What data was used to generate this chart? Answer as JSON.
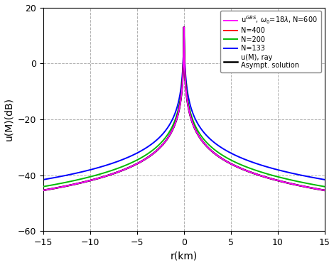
{
  "xlim": [
    -15,
    15
  ],
  "ylim": [
    -60,
    20
  ],
  "xlabel": "r(km)",
  "ylabel": "u(M)(dB)",
  "xticks": [
    -15,
    -10,
    -5,
    0,
    5,
    10,
    15
  ],
  "yticks": [
    -60,
    -40,
    -20,
    0,
    20
  ],
  "peak_value": 13.0,
  "color_ray": "#000000",
  "color_n600": "#ff00ff",
  "color_n400": "#ff0000",
  "color_n200": "#00bb00",
  "color_n133": "#0000ff",
  "lw_ray": 1.8,
  "lw_n600": 1.4,
  "lw_n400": 1.4,
  "lw_n200": 1.4,
  "lw_n133": 1.4,
  "legend_n600": "u$^{GBS}$, $\\omega_0$=18$\\lambda$, N=600",
  "legend_n400": "N=400",
  "legend_n200": "N=200",
  "legend_n133": "N=133",
  "legend_ray": "u(M), ray\nAsympt. solution",
  "background_color": "#ffffff",
  "grid_color": "#b0b0b0",
  "grid_style": "--",
  "ray_A": 20.0,
  "ray_eps": 0.018,
  "n600_A": 20.0,
  "n600_eps": 0.018,
  "n400_A": 20.0,
  "n400_eps": 0.018,
  "n200_A": 20.0,
  "n200_eps": 0.021,
  "n133_A": 20.0,
  "n133_eps": 0.028
}
